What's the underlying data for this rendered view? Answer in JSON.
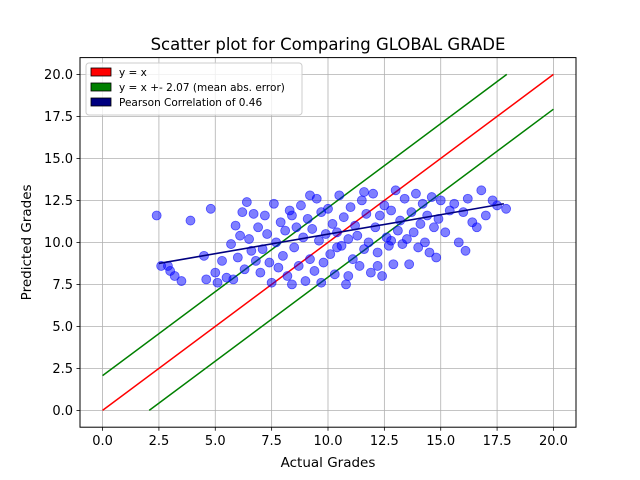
{
  "chart_data": {
    "type": "scatter",
    "title": "Scatter plot for Comparing GLOBAL GRADE",
    "xlabel": "Actual Grades",
    "ylabel": "Predicted Grades",
    "xlim": [
      -1.0,
      21.0
    ],
    "ylim": [
      -1.0,
      21.0
    ],
    "xticks": [
      "0.0",
      "2.5",
      "5.0",
      "7.5",
      "10.0",
      "12.5",
      "15.0",
      "17.5",
      "20.0"
    ],
    "yticks": [
      "0.0",
      "2.5",
      "5.0",
      "7.5",
      "10.0",
      "12.5",
      "15.0",
      "17.5",
      "20.0"
    ],
    "grid": true,
    "legend_position": "top-left",
    "series": [
      {
        "name": "y = x",
        "kind": "line",
        "color": "#ff0000",
        "x": [
          0,
          20
        ],
        "y": [
          0,
          20
        ]
      },
      {
        "name": "y = x +- 2.07 (mean abs. error)",
        "kind": "line",
        "color": "#008000",
        "x_upper": [
          0,
          17.93
        ],
        "y_upper": [
          2.07,
          20
        ],
        "x_lower": [
          2.07,
          20
        ],
        "y_lower": [
          0,
          17.93
        ]
      },
      {
        "name": "Pearson Correlation of 0.46",
        "kind": "line",
        "color": "#000080",
        "x": [
          2.5,
          17.8
        ],
        "y": [
          8.75,
          12.3
        ]
      }
    ],
    "points_color": "#0000ff",
    "points": [
      [
        2.4,
        11.6
      ],
      [
        2.6,
        8.6
      ],
      [
        2.9,
        8.6
      ],
      [
        3.0,
        8.3
      ],
      [
        3.2,
        8.0
      ],
      [
        3.5,
        7.7
      ],
      [
        3.9,
        11.3
      ],
      [
        4.5,
        9.2
      ],
      [
        4.6,
        7.8
      ],
      [
        4.8,
        12.0
      ],
      [
        5.0,
        8.2
      ],
      [
        5.1,
        7.6
      ],
      [
        5.3,
        8.9
      ],
      [
        5.5,
        7.9
      ],
      [
        5.7,
        9.9
      ],
      [
        5.8,
        7.8
      ],
      [
        5.9,
        11.0
      ],
      [
        6.0,
        9.1
      ],
      [
        6.1,
        10.4
      ],
      [
        6.2,
        11.8
      ],
      [
        6.3,
        8.4
      ],
      [
        6.4,
        12.4
      ],
      [
        6.5,
        10.2
      ],
      [
        6.6,
        9.5
      ],
      [
        6.7,
        11.7
      ],
      [
        6.8,
        8.9
      ],
      [
        6.9,
        10.9
      ],
      [
        7.0,
        8.2
      ],
      [
        7.1,
        9.6
      ],
      [
        7.2,
        11.6
      ],
      [
        7.3,
        10.5
      ],
      [
        7.4,
        8.8
      ],
      [
        7.5,
        7.6
      ],
      [
        7.6,
        12.3
      ],
      [
        7.7,
        10.0
      ],
      [
        7.8,
        8.5
      ],
      [
        7.9,
        11.2
      ],
      [
        8.0,
        9.2
      ],
      [
        8.1,
        10.7
      ],
      [
        8.2,
        8.0
      ],
      [
        8.3,
        11.9
      ],
      [
        8.4,
        7.5
      ],
      [
        8.5,
        9.7
      ],
      [
        8.6,
        10.9
      ],
      [
        8.7,
        8.6
      ],
      [
        8.8,
        12.2
      ],
      [
        8.9,
        10.3
      ],
      [
        9.0,
        7.7
      ],
      [
        9.1,
        11.4
      ],
      [
        9.2,
        9.0
      ],
      [
        9.3,
        10.8
      ],
      [
        9.4,
        8.3
      ],
      [
        9.5,
        12.6
      ],
      [
        9.6,
        10.1
      ],
      [
        9.7,
        11.8
      ],
      [
        9.8,
        8.8
      ],
      [
        9.9,
        10.5
      ],
      [
        10.0,
        12.0
      ],
      [
        10.1,
        9.3
      ],
      [
        10.2,
        11.1
      ],
      [
        10.3,
        8.1
      ],
      [
        10.4,
        10.6
      ],
      [
        10.5,
        12.8
      ],
      [
        10.6,
        9.8
      ],
      [
        10.7,
        11.5
      ],
      [
        10.8,
        7.5
      ],
      [
        10.9,
        10.2
      ],
      [
        11.0,
        12.1
      ],
      [
        11.1,
        9.0
      ],
      [
        11.2,
        11.0
      ],
      [
        11.3,
        10.4
      ],
      [
        11.4,
        8.6
      ],
      [
        11.5,
        12.5
      ],
      [
        11.6,
        9.6
      ],
      [
        11.7,
        11.7
      ],
      [
        11.8,
        10.0
      ],
      [
        11.9,
        8.2
      ],
      [
        12.0,
        12.9
      ],
      [
        12.1,
        10.9
      ],
      [
        12.2,
        9.4
      ],
      [
        12.3,
        11.6
      ],
      [
        12.4,
        8.0
      ],
      [
        12.5,
        12.2
      ],
      [
        12.6,
        10.3
      ],
      [
        12.7,
        9.8
      ],
      [
        12.8,
        11.9
      ],
      [
        12.9,
        8.7
      ],
      [
        13.0,
        13.1
      ],
      [
        13.1,
        10.7
      ],
      [
        13.2,
        11.3
      ],
      [
        13.3,
        9.9
      ],
      [
        13.4,
        12.6
      ],
      [
        13.5,
        10.2
      ],
      [
        13.6,
        8.7
      ],
      [
        13.7,
        11.8
      ],
      [
        13.8,
        10.6
      ],
      [
        13.9,
        12.9
      ],
      [
        14.0,
        9.7
      ],
      [
        14.1,
        11.1
      ],
      [
        14.2,
        12.3
      ],
      [
        14.3,
        10.0
      ],
      [
        14.4,
        11.6
      ],
      [
        14.5,
        9.4
      ],
      [
        14.6,
        12.7
      ],
      [
        14.7,
        10.9
      ],
      [
        14.8,
        9.1
      ],
      [
        14.9,
        11.4
      ],
      [
        15.0,
        12.5
      ],
      [
        15.2,
        10.6
      ],
      [
        15.4,
        11.9
      ],
      [
        15.6,
        12.3
      ],
      [
        15.8,
        10.0
      ],
      [
        16.0,
        11.8
      ],
      [
        16.1,
        9.5
      ],
      [
        16.2,
        12.6
      ],
      [
        16.4,
        11.2
      ],
      [
        16.6,
        10.9
      ],
      [
        16.8,
        13.1
      ],
      [
        17.0,
        11.6
      ],
      [
        17.3,
        12.5
      ],
      [
        17.5,
        12.2
      ],
      [
        17.9,
        12.0
      ],
      [
        8.4,
        11.6
      ],
      [
        9.2,
        12.8
      ],
      [
        10.4,
        9.7
      ],
      [
        11.6,
        13.0
      ],
      [
        12.8,
        10.1
      ],
      [
        10.9,
        8.0
      ],
      [
        12.2,
        8.6
      ],
      [
        9.7,
        7.6
      ]
    ]
  }
}
